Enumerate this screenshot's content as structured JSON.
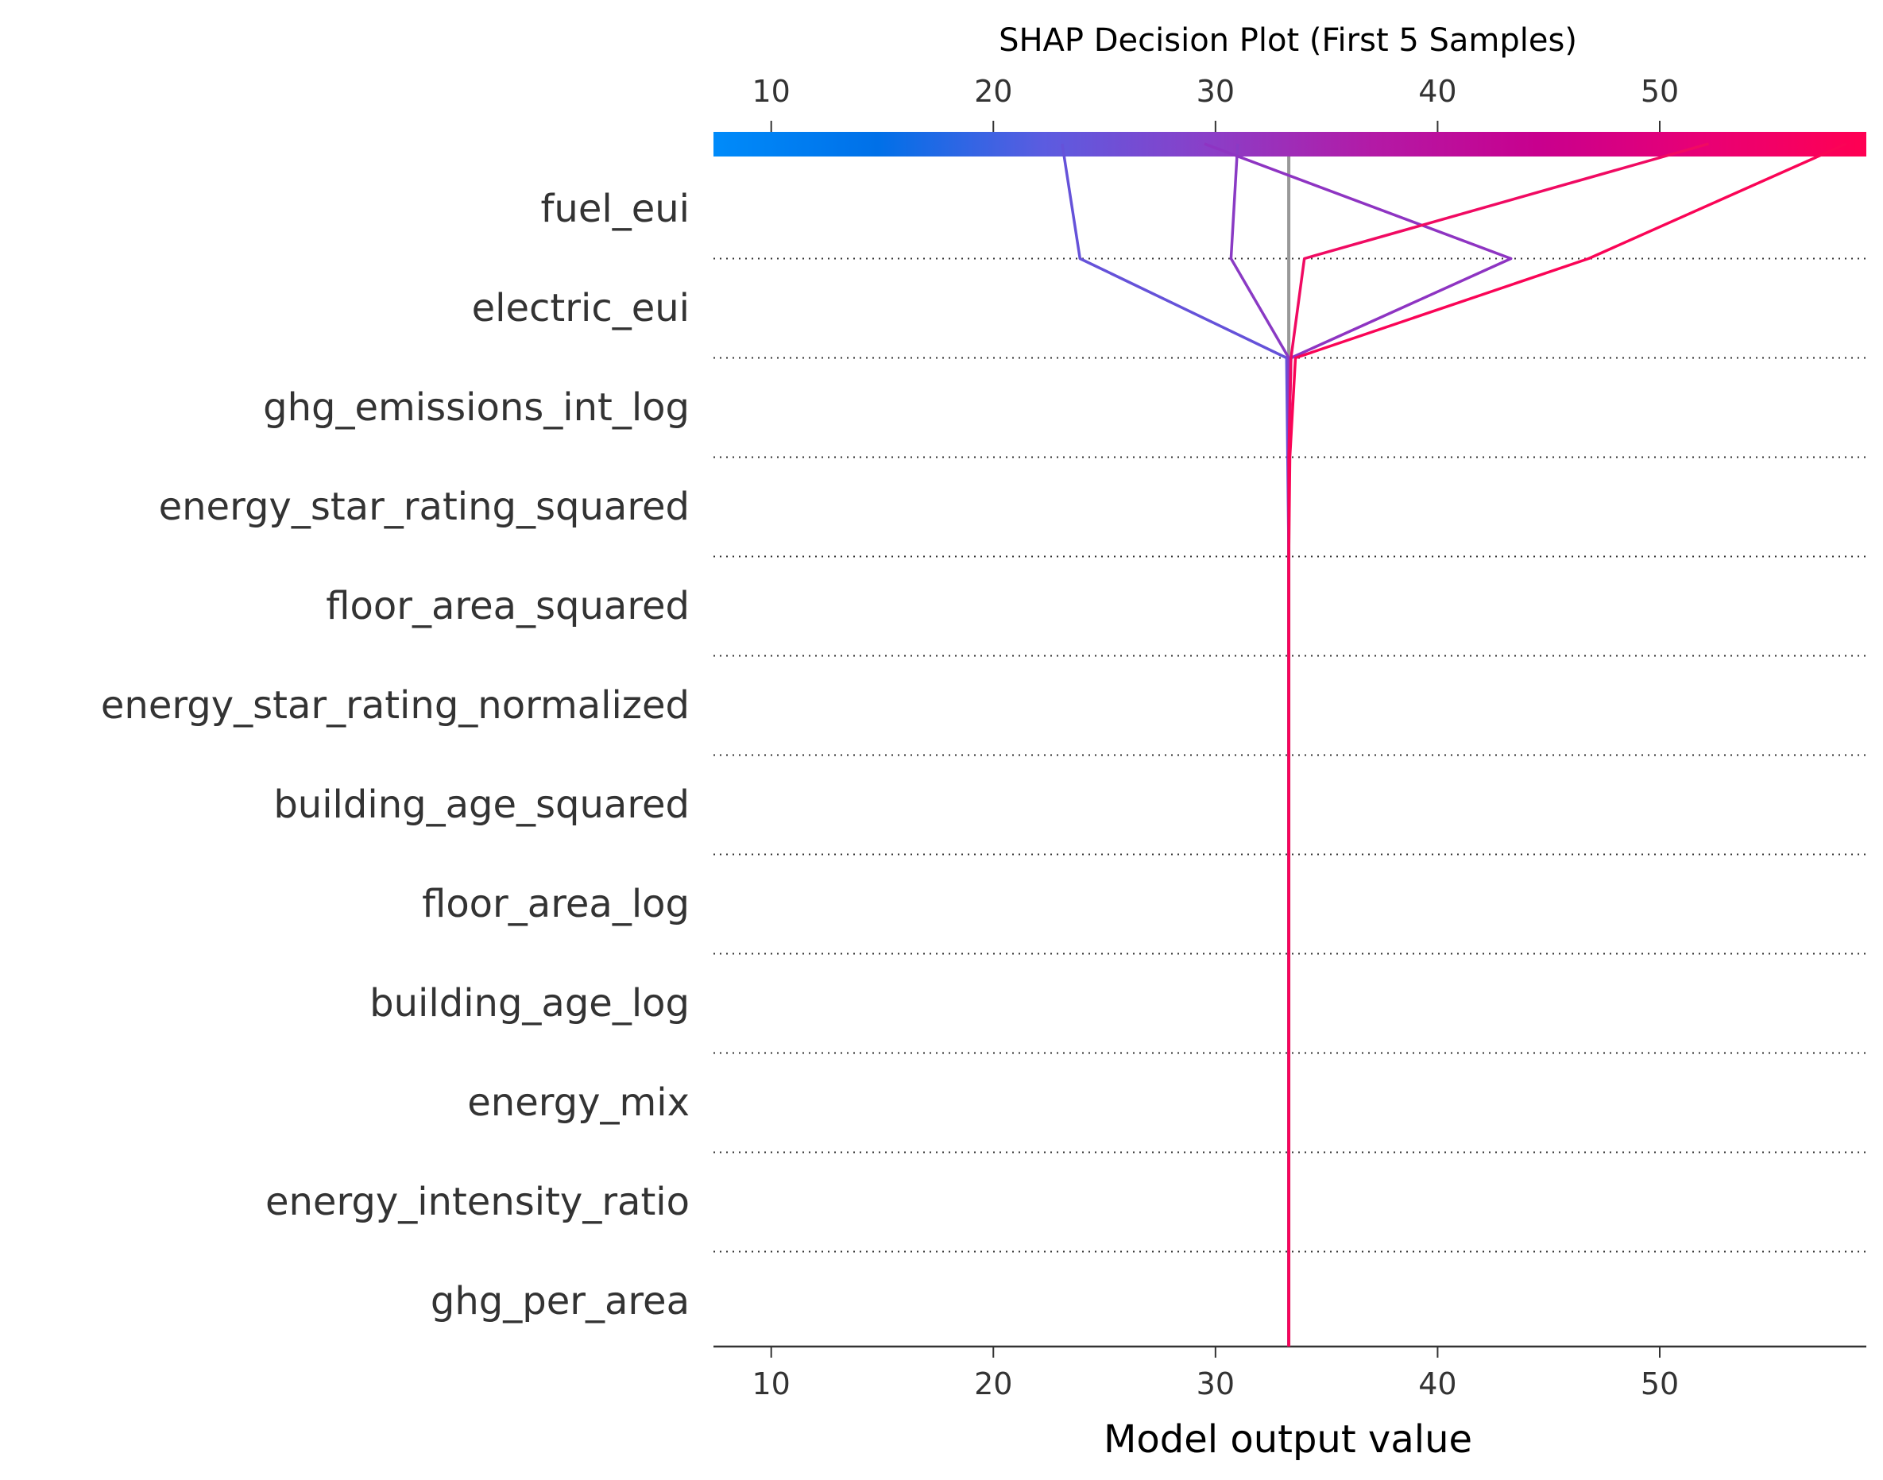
{
  "chart_data": {
    "type": "line",
    "title": "SHAP Decision Plot (First 5 Samples)",
    "xlabel": "Model output value",
    "xlim": [
      7.4,
      59.3
    ],
    "xticks": [
      10,
      20,
      30,
      40,
      50
    ],
    "base_value": 33.3,
    "features": [
      "fuel_eui",
      "electric_eui",
      "ghg_emissions_int_log",
      "energy_star_rating_squared",
      "floor_area_squared",
      "energy_star_rating_normalized",
      "building_age_squared",
      "floor_area_log",
      "building_age_log",
      "energy_mix",
      "energy_intensity_ratio",
      "ghg_per_area"
    ],
    "colormap": [
      "#008bfa",
      "#0070e8",
      "#5b5ce0",
      "#8a3fc8",
      "#b31aa6",
      "#c8008e",
      "#e80075",
      "#ff0052"
    ],
    "grid_color": "#333333",
    "base_line_color": "#999999",
    "series": [
      {
        "color": "#6552d9",
        "values": [
          23.1,
          23.9,
          33.2,
          33.25,
          33.3,
          33.3,
          33.3,
          33.3,
          33.3,
          33.3,
          33.3,
          33.3,
          33.3
        ]
      },
      {
        "color": "#8a3ac4",
        "values": [
          31.0,
          30.7,
          33.3,
          33.3,
          33.3,
          33.3,
          33.3,
          33.3,
          33.3,
          33.3,
          33.3,
          33.3,
          33.3
        ]
      },
      {
        "color": "#8e34c2",
        "values": [
          29.5,
          43.3,
          33.4,
          33.3,
          33.3,
          33.3,
          33.3,
          33.3,
          33.3,
          33.3,
          33.3,
          33.3,
          33.3
        ]
      },
      {
        "color": "#f00a62",
        "values": [
          52.2,
          34.0,
          33.4,
          33.3,
          33.3,
          33.3,
          33.3,
          33.3,
          33.3,
          33.3,
          33.3,
          33.3,
          33.3
        ]
      },
      {
        "color": "#fa0456",
        "values": [
          58.4,
          46.8,
          33.6,
          33.35,
          33.3,
          33.3,
          33.3,
          33.3,
          33.3,
          33.3,
          33.3,
          33.3,
          33.3
        ]
      }
    ]
  }
}
